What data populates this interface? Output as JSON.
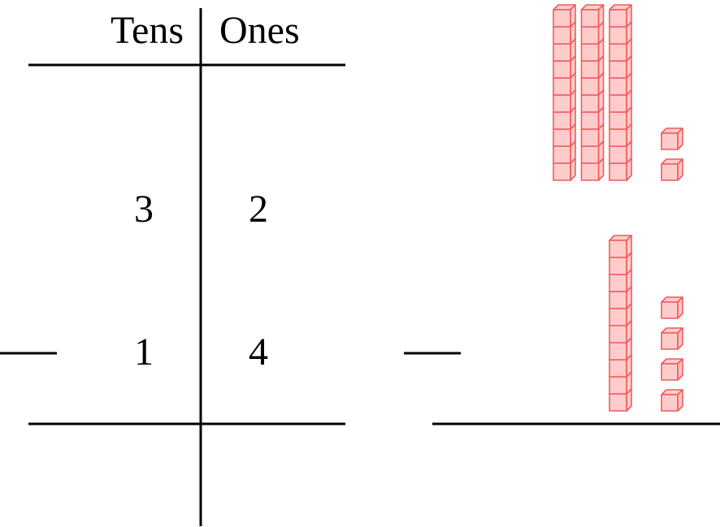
{
  "table": {
    "headers": [
      "Tens",
      "Ones"
    ],
    "rows": [
      [
        "3",
        "2"
      ],
      [
        "1",
        "4"
      ]
    ]
  }
}
